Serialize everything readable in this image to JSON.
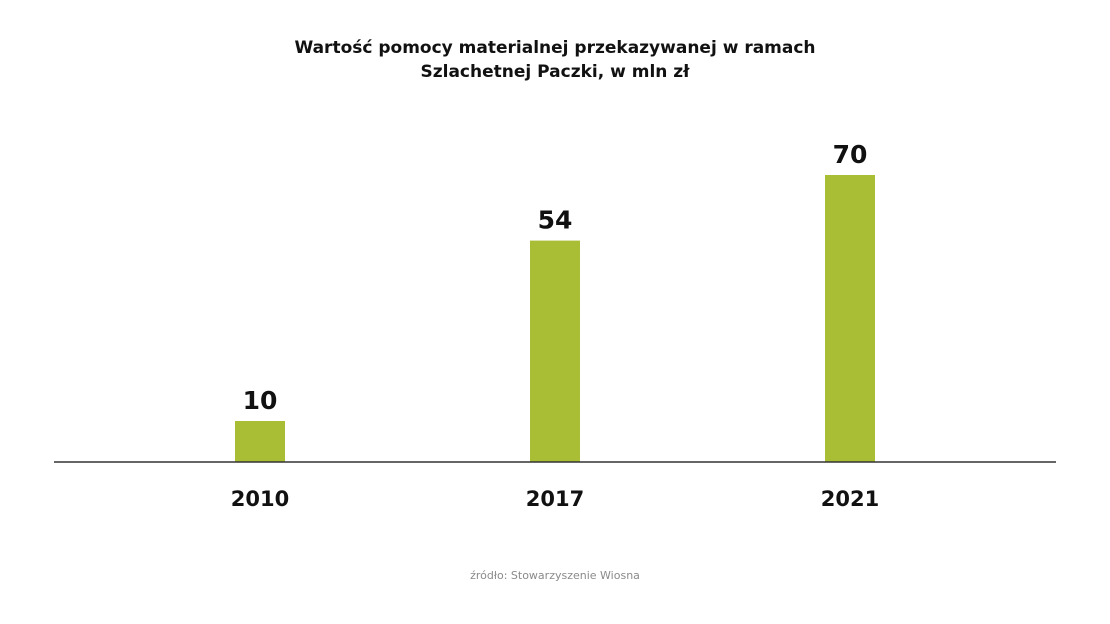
{
  "chart_data": {
    "type": "bar",
    "title_lines": [
      "Wartość pomocy materialnej przekazywanej w ramach",
      "Szlachetnej Paczki, w mln zł"
    ],
    "categories": [
      "2010",
      "2017",
      "2021"
    ],
    "values": [
      10,
      54,
      70
    ],
    "data_labels": [
      "10",
      "54",
      "70"
    ],
    "ylim": [
      0,
      70
    ],
    "grid": false,
    "legend": false,
    "bar_color": "#a9bd35",
    "axis_color": "#333333"
  },
  "source": "źródło: Stowarzyszenie Wiosna"
}
